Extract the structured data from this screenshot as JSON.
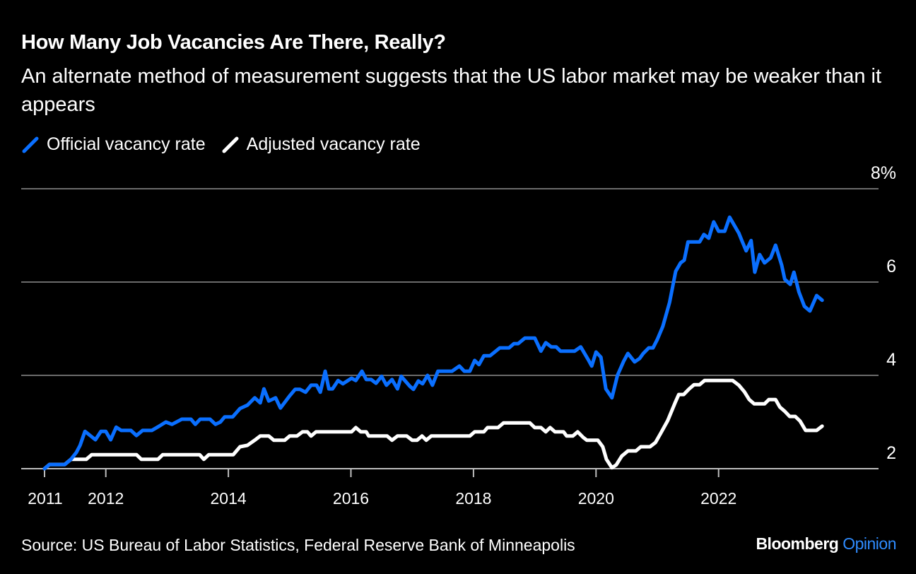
{
  "chart_data": {
    "type": "line",
    "title": "How Many Job Vacancies Are There, Really?",
    "subtitle": "An alternate method of measurement suggests that the US labor market may be weaker than it appears",
    "source": "Source: US Bureau of Labor Statistics, Federal Reserve Bank of Minneapolis",
    "brand": {
      "name": "Bloomberg",
      "suffix": "Opinion"
    },
    "ylim": [
      2,
      8
    ],
    "yticks": [
      {
        "value": 8,
        "label": "8%"
      },
      {
        "value": 6,
        "label": "6"
      },
      {
        "value": 4,
        "label": "4"
      },
      {
        "value": 2,
        "label": "2"
      }
    ],
    "xlim": [
      2011,
      2024.2
    ],
    "xticks": [
      {
        "value": 2011,
        "label": "2011"
      },
      {
        "value": 2012,
        "label": "2012"
      },
      {
        "value": 2014,
        "label": "2014"
      },
      {
        "value": 2016,
        "label": "2016"
      },
      {
        "value": 2018,
        "label": "2018"
      },
      {
        "value": 2020,
        "label": "2020"
      },
      {
        "value": 2022,
        "label": "2022"
      }
    ],
    "grid": true,
    "legend_position": "top-left",
    "series": [
      {
        "name": "Official vacancy rate",
        "color": "#0a6fff",
        "points": [
          [
            2011.0,
            2.0
          ],
          [
            2011.08,
            2.09
          ],
          [
            2011.33,
            2.09
          ],
          [
            2011.43,
            2.2
          ],
          [
            2011.52,
            2.35
          ],
          [
            2011.58,
            2.5
          ],
          [
            2011.66,
            2.8
          ],
          [
            2011.83,
            2.62
          ],
          [
            2011.92,
            2.8
          ],
          [
            2012.0,
            2.8
          ],
          [
            2012.08,
            2.62
          ],
          [
            2012.17,
            2.89
          ],
          [
            2012.25,
            2.82
          ],
          [
            2012.41,
            2.82
          ],
          [
            2012.5,
            2.71
          ],
          [
            2012.6,
            2.82
          ],
          [
            2012.75,
            2.82
          ],
          [
            2012.87,
            2.91
          ],
          [
            2012.98,
            3.0
          ],
          [
            2013.08,
            2.95
          ],
          [
            2013.24,
            3.06
          ],
          [
            2013.39,
            3.06
          ],
          [
            2013.46,
            2.95
          ],
          [
            2013.54,
            3.06
          ],
          [
            2013.7,
            3.06
          ],
          [
            2013.79,
            2.95
          ],
          [
            2013.87,
            3.0
          ],
          [
            2013.94,
            3.11
          ],
          [
            2014.07,
            3.11
          ],
          [
            2014.19,
            3.29
          ],
          [
            2014.31,
            3.36
          ],
          [
            2014.43,
            3.52
          ],
          [
            2014.52,
            3.41
          ],
          [
            2014.58,
            3.71
          ],
          [
            2014.66,
            3.45
          ],
          [
            2014.77,
            3.52
          ],
          [
            2014.85,
            3.3
          ],
          [
            2015.0,
            3.56
          ],
          [
            2015.09,
            3.7
          ],
          [
            2015.17,
            3.7
          ],
          [
            2015.26,
            3.64
          ],
          [
            2015.35,
            3.79
          ],
          [
            2015.44,
            3.79
          ],
          [
            2015.5,
            3.64
          ],
          [
            2015.58,
            4.09
          ],
          [
            2015.64,
            3.71
          ],
          [
            2015.7,
            3.71
          ],
          [
            2015.79,
            3.89
          ],
          [
            2015.87,
            3.82
          ],
          [
            2016.01,
            3.94
          ],
          [
            2016.08,
            3.89
          ],
          [
            2016.18,
            4.09
          ],
          [
            2016.25,
            3.91
          ],
          [
            2016.33,
            3.91
          ],
          [
            2016.41,
            3.83
          ],
          [
            2016.5,
            3.98
          ],
          [
            2016.58,
            3.79
          ],
          [
            2016.67,
            3.91
          ],
          [
            2016.76,
            3.71
          ],
          [
            2016.82,
            3.98
          ],
          [
            2016.96,
            3.77
          ],
          [
            2017.02,
            3.7
          ],
          [
            2017.1,
            3.88
          ],
          [
            2017.17,
            3.82
          ],
          [
            2017.25,
            4.0
          ],
          [
            2017.33,
            3.79
          ],
          [
            2017.42,
            4.09
          ],
          [
            2017.65,
            4.09
          ],
          [
            2017.77,
            4.2
          ],
          [
            2017.85,
            4.09
          ],
          [
            2017.94,
            4.09
          ],
          [
            2018.02,
            4.32
          ],
          [
            2018.09,
            4.23
          ],
          [
            2018.17,
            4.42
          ],
          [
            2018.27,
            4.42
          ],
          [
            2018.43,
            4.59
          ],
          [
            2018.58,
            4.59
          ],
          [
            2018.66,
            4.68
          ],
          [
            2018.73,
            4.68
          ],
          [
            2018.84,
            4.8
          ],
          [
            2019.0,
            4.8
          ],
          [
            2019.1,
            4.52
          ],
          [
            2019.18,
            4.7
          ],
          [
            2019.27,
            4.61
          ],
          [
            2019.35,
            4.61
          ],
          [
            2019.42,
            4.52
          ],
          [
            2019.65,
            4.52
          ],
          [
            2019.75,
            4.61
          ],
          [
            2019.88,
            4.32
          ],
          [
            2019.93,
            4.2
          ],
          [
            2020.0,
            4.5
          ],
          [
            2020.08,
            4.39
          ],
          [
            2020.16,
            3.71
          ],
          [
            2020.26,
            3.52
          ],
          [
            2020.35,
            4.0
          ],
          [
            2020.45,
            4.3
          ],
          [
            2020.52,
            4.47
          ],
          [
            2020.63,
            4.29
          ],
          [
            2020.71,
            4.36
          ],
          [
            2020.77,
            4.47
          ],
          [
            2020.86,
            4.59
          ],
          [
            2020.93,
            4.59
          ],
          [
            2021.0,
            4.77
          ],
          [
            2021.09,
            5.05
          ],
          [
            2021.2,
            5.56
          ],
          [
            2021.3,
            6.23
          ],
          [
            2021.38,
            6.41
          ],
          [
            2021.44,
            6.47
          ],
          [
            2021.5,
            6.86
          ],
          [
            2021.69,
            6.86
          ],
          [
            2021.76,
            7.02
          ],
          [
            2021.84,
            6.94
          ],
          [
            2021.92,
            7.29
          ],
          [
            2022.0,
            7.09
          ],
          [
            2022.1,
            7.09
          ],
          [
            2022.18,
            7.39
          ],
          [
            2022.33,
            7.05
          ],
          [
            2022.38,
            6.89
          ],
          [
            2022.45,
            6.67
          ],
          [
            2022.53,
            6.89
          ],
          [
            2022.59,
            6.21
          ],
          [
            2022.67,
            6.59
          ],
          [
            2022.75,
            6.41
          ],
          [
            2022.85,
            6.52
          ],
          [
            2022.93,
            6.79
          ],
          [
            2023.03,
            6.36
          ],
          [
            2023.08,
            6.06
          ],
          [
            2023.17,
            5.95
          ],
          [
            2023.23,
            6.21
          ],
          [
            2023.31,
            5.79
          ],
          [
            2023.4,
            5.48
          ],
          [
            2023.49,
            5.38
          ],
          [
            2023.6,
            5.71
          ],
          [
            2023.69,
            5.61
          ]
        ]
      },
      {
        "name": "Adjusted vacancy rate",
        "color": "#ffffff",
        "points": [
          [
            2011.0,
            2.0
          ],
          [
            2011.08,
            2.09
          ],
          [
            2011.33,
            2.09
          ],
          [
            2011.43,
            2.2
          ],
          [
            2011.68,
            2.2
          ],
          [
            2011.77,
            2.3
          ],
          [
            2012.5,
            2.3
          ],
          [
            2012.58,
            2.2
          ],
          [
            2012.85,
            2.2
          ],
          [
            2012.93,
            2.3
          ],
          [
            2013.53,
            2.3
          ],
          [
            2013.6,
            2.2
          ],
          [
            2013.68,
            2.3
          ],
          [
            2014.08,
            2.3
          ],
          [
            2014.19,
            2.47
          ],
          [
            2014.31,
            2.5
          ],
          [
            2014.43,
            2.61
          ],
          [
            2014.52,
            2.7
          ],
          [
            2014.66,
            2.7
          ],
          [
            2014.74,
            2.61
          ],
          [
            2014.92,
            2.61
          ],
          [
            2015.0,
            2.7
          ],
          [
            2015.12,
            2.7
          ],
          [
            2015.21,
            2.79
          ],
          [
            2015.29,
            2.79
          ],
          [
            2015.35,
            2.7
          ],
          [
            2015.43,
            2.79
          ],
          [
            2016.01,
            2.79
          ],
          [
            2016.08,
            2.88
          ],
          [
            2016.16,
            2.79
          ],
          [
            2016.25,
            2.79
          ],
          [
            2016.29,
            2.7
          ],
          [
            2016.59,
            2.7
          ],
          [
            2016.67,
            2.61
          ],
          [
            2016.76,
            2.7
          ],
          [
            2016.91,
            2.7
          ],
          [
            2017.0,
            2.61
          ],
          [
            2017.08,
            2.61
          ],
          [
            2017.16,
            2.7
          ],
          [
            2017.23,
            2.61
          ],
          [
            2017.31,
            2.7
          ],
          [
            2017.94,
            2.7
          ],
          [
            2018.02,
            2.79
          ],
          [
            2018.17,
            2.79
          ],
          [
            2018.23,
            2.88
          ],
          [
            2018.4,
            2.88
          ],
          [
            2018.49,
            2.98
          ],
          [
            2018.92,
            2.98
          ],
          [
            2019.0,
            2.88
          ],
          [
            2019.1,
            2.88
          ],
          [
            2019.18,
            2.79
          ],
          [
            2019.25,
            2.88
          ],
          [
            2019.33,
            2.79
          ],
          [
            2019.47,
            2.79
          ],
          [
            2019.52,
            2.7
          ],
          [
            2019.62,
            2.7
          ],
          [
            2019.7,
            2.79
          ],
          [
            2019.79,
            2.67
          ],
          [
            2019.85,
            2.61
          ],
          [
            2020.03,
            2.61
          ],
          [
            2020.11,
            2.47
          ],
          [
            2020.17,
            2.2
          ],
          [
            2020.26,
            2.02
          ],
          [
            2020.33,
            2.08
          ],
          [
            2020.42,
            2.27
          ],
          [
            2020.52,
            2.38
          ],
          [
            2020.65,
            2.38
          ],
          [
            2020.73,
            2.47
          ],
          [
            2020.88,
            2.47
          ],
          [
            2020.97,
            2.56
          ],
          [
            2021.06,
            2.77
          ],
          [
            2021.17,
            3.03
          ],
          [
            2021.29,
            3.41
          ],
          [
            2021.35,
            3.59
          ],
          [
            2021.43,
            3.59
          ],
          [
            2021.52,
            3.71
          ],
          [
            2021.6,
            3.8
          ],
          [
            2021.69,
            3.8
          ],
          [
            2021.77,
            3.89
          ],
          [
            2022.23,
            3.89
          ],
          [
            2022.33,
            3.79
          ],
          [
            2022.42,
            3.65
          ],
          [
            2022.5,
            3.48
          ],
          [
            2022.58,
            3.39
          ],
          [
            2022.75,
            3.39
          ],
          [
            2022.82,
            3.48
          ],
          [
            2022.93,
            3.48
          ],
          [
            2023.0,
            3.32
          ],
          [
            2023.08,
            3.23
          ],
          [
            2023.16,
            3.12
          ],
          [
            2023.25,
            3.12
          ],
          [
            2023.33,
            3.02
          ],
          [
            2023.42,
            2.82
          ],
          [
            2023.6,
            2.82
          ],
          [
            2023.69,
            2.91
          ]
        ]
      }
    ]
  }
}
